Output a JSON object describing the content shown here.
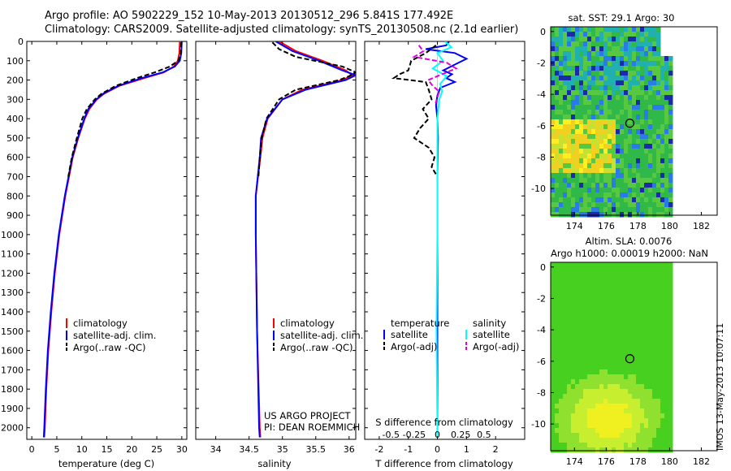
{
  "title_line1": "Argo profile: AO 5902229_152 10-May-2013 20130512_296 5.841S 177.492E",
  "title_line2": "Climatology: CARS2009. Satellite-adjusted climatology: synTS_20130508.nc (2.1d earlier)",
  "colors": {
    "climatology": "#ff0000",
    "satellite": "#0000ff",
    "argo": "#000000",
    "sat_salt": "#00ffff",
    "argo_salt": "#e000e0"
  },
  "chart_data": [
    {
      "type": "line",
      "id": "temperature",
      "xlabel": "temperature (deg C)",
      "ylabel": "",
      "xlim": [
        -1,
        31
      ],
      "ylim": [
        2060,
        0
      ],
      "xticks": [
        "0",
        "5",
        "10",
        "15",
        "20",
        "25",
        "30"
      ],
      "xtick_values": [
        0,
        5,
        10,
        15,
        20,
        25,
        30
      ],
      "yticks": [
        "0",
        "100",
        "200",
        "300",
        "400",
        "500",
        "600",
        "700",
        "800",
        "900",
        "1000",
        "1100",
        "1200",
        "1300",
        "1400",
        "1500",
        "1600",
        "1700",
        "1800",
        "1900",
        "2000"
      ],
      "ytick_values": [
        0,
        100,
        200,
        300,
        400,
        500,
        600,
        700,
        800,
        900,
        1000,
        1100,
        1200,
        1300,
        1400,
        1500,
        1600,
        1700,
        1800,
        1900,
        2000
      ],
      "legend": [
        "climatology",
        "satellite-adj. clim.",
        "Argo(..raw -QC)"
      ],
      "series": [
        {
          "name": "climatology",
          "depth": [
            0,
            60,
            100,
            130,
            160,
            190,
            230,
            270,
            300,
            350,
            400,
            500,
            600,
            800,
            1000,
            1200,
            1400,
            1600,
            1800,
            2000,
            2050
          ],
          "values": [
            29.6,
            29.5,
            29.2,
            28.4,
            26.4,
            22.5,
            17.5,
            14.5,
            13.0,
            11.5,
            10.6,
            9.3,
            8.2,
            6.7,
            5.5,
            4.6,
            3.9,
            3.3,
            2.9,
            2.6,
            2.5
          ]
        },
        {
          "name": "satellite-adj. clim.",
          "depth": [
            0,
            60,
            100,
            130,
            160,
            190,
            230,
            270,
            300,
            350,
            400,
            500,
            600,
            800,
            1000,
            1200,
            1400,
            1600,
            1800,
            2000,
            2050
          ],
          "values": [
            30.0,
            29.9,
            29.6,
            28.6,
            26.2,
            22.0,
            17.3,
            14.3,
            12.9,
            11.3,
            10.5,
            9.2,
            8.1,
            6.6,
            5.4,
            4.5,
            3.8,
            3.2,
            2.8,
            2.5,
            2.4
          ]
        },
        {
          "name": "Argo(..raw -QC)",
          "depth": [
            5,
            60,
            100,
            130,
            160,
            190,
            230,
            270,
            300,
            350,
            400,
            500,
            600,
            700
          ],
          "values": [
            29.9,
            29.8,
            29.3,
            27.6,
            24.6,
            21.0,
            16.8,
            14.0,
            12.6,
            11.0,
            10.1,
            9.0,
            8.0,
            7.3
          ]
        }
      ]
    },
    {
      "type": "line",
      "id": "salinity",
      "xlabel": "salinity",
      "ylabel": "",
      "xlim": [
        33.7,
        36.1
      ],
      "ylim": [
        2060,
        0
      ],
      "xticks": [
        "34",
        "34.5",
        "35",
        "35.5",
        "36"
      ],
      "xtick_values": [
        34,
        34.5,
        35,
        35.5,
        36
      ],
      "legend": [
        "climatology",
        "satellite-adj. clim.",
        "Argo(..raw -QC)"
      ],
      "annotation_line1": "US ARGO PROJECT",
      "annotation_line2": "PI: DEAN ROEMMICH",
      "series": [
        {
          "name": "climatology",
          "depth": [
            0,
            50,
            100,
            150,
            175,
            200,
            250,
            300,
            400,
            500,
            600,
            800,
            1000,
            1500,
            2000,
            2050
          ],
          "values": [
            34.95,
            35.2,
            35.6,
            35.95,
            36.05,
            35.9,
            35.3,
            35.0,
            34.78,
            34.7,
            34.67,
            34.6,
            34.6,
            34.62,
            34.66,
            34.67
          ]
        },
        {
          "name": "satellite-adj. clim.",
          "depth": [
            0,
            50,
            100,
            150,
            175,
            200,
            250,
            300,
            400,
            500,
            600,
            800,
            1000,
            1500,
            2000,
            2050
          ],
          "values": [
            34.9,
            35.15,
            35.55,
            35.9,
            36.1,
            35.95,
            35.35,
            35.0,
            34.77,
            34.68,
            34.66,
            34.6,
            34.6,
            34.62,
            34.65,
            34.66
          ]
        },
        {
          "name": "Argo(..raw -QC)",
          "depth": [
            5,
            40,
            80,
            130,
            160,
            180,
            200,
            250,
            300,
            400,
            500,
            600,
            700
          ],
          "values": [
            34.85,
            34.95,
            35.2,
            35.9,
            36.1,
            36.0,
            35.85,
            35.2,
            34.95,
            34.76,
            34.69,
            34.66,
            34.64
          ]
        }
      ]
    },
    {
      "type": "line",
      "id": "differences",
      "xlabel": "T difference from climatology",
      "x2label": "S difference from climatology",
      "xlim": [
        -2.5,
        3
      ],
      "ylim": [
        2060,
        0
      ],
      "xticks": [
        "-2",
        "-1",
        "0",
        "1",
        "2"
      ],
      "xtick_values": [
        -2,
        -1,
        0,
        1,
        2
      ],
      "x2ticks": [
        "-0.5",
        "-0.25",
        "0",
        "0.25",
        "0.5"
      ],
      "x2tick_values": [
        -0.5,
        -0.25,
        0,
        0.25,
        0.5
      ],
      "legend_temperature_title": "temperature",
      "legend_salinity_title": "salinity",
      "legend": [
        "satellite",
        "Argo(-adj)",
        "satellite",
        "Argo(-adj)"
      ],
      "series": [
        {
          "name": "temperature satellite",
          "axis": "T",
          "depth": [
            0,
            20,
            40,
            60,
            90,
            120,
            150,
            170,
            190,
            210,
            240,
            280,
            330,
            400,
            500,
            700,
            1000,
            1500,
            2000,
            2050
          ],
          "values": [
            0.4,
            0.3,
            -0.4,
            0.6,
            1.0,
            0.6,
            0.2,
            0.5,
            0.3,
            0.6,
            0.1,
            0.0,
            -0.05,
            0.0,
            0.02,
            0.0,
            0.0,
            0.0,
            0.0,
            0.0
          ]
        },
        {
          "name": "temperature Argo(-adj)",
          "axis": "T",
          "depth": [
            20,
            60,
            100,
            150,
            170,
            190,
            210,
            250,
            300,
            350,
            400,
            450,
            500,
            550,
            600,
            650,
            700
          ],
          "values": [
            -0.05,
            -0.4,
            -0.9,
            -1.0,
            -1.3,
            -1.5,
            -0.4,
            -0.3,
            -0.2,
            -0.5,
            -0.3,
            -0.6,
            -0.8,
            -0.3,
            -0.1,
            -0.2,
            0.0
          ]
        },
        {
          "name": "salinity satellite",
          "axis": "S",
          "depth": [
            0,
            30,
            60,
            100,
            140,
            180,
            220,
            260,
            300,
            400,
            600,
            1000,
            1500,
            2000,
            2050
          ],
          "values": [
            0.08,
            0.15,
            0.0,
            0.06,
            -0.05,
            0.1,
            0.03,
            0.05,
            0.02,
            0.0,
            0.0,
            0.0,
            -0.01,
            0.0,
            0.0
          ]
        },
        {
          "name": "salinity Argo(-adj)",
          "axis": "S",
          "depth": [
            20,
            50,
            80,
            110,
            140,
            170,
            200,
            230,
            260,
            290,
            320
          ],
          "values": [
            -0.2,
            -0.15,
            -0.25,
            0.1,
            0.2,
            0.05,
            -0.1,
            -0.05,
            0.02,
            0.0,
            -0.02
          ]
        }
      ]
    },
    {
      "type": "heatmap",
      "id": "sst_map",
      "title": "sat. SST: 29.1  Argo: 30",
      "xlim": [
        172.5,
        183
      ],
      "ylim": [
        -11.7,
        0.3
      ],
      "xticks": [
        "174",
        "176",
        "178",
        "180",
        "182"
      ],
      "xtick_values": [
        174,
        176,
        178,
        180,
        182
      ],
      "yticks": [
        "0",
        "-2",
        "-4",
        "-6",
        "-8",
        "-10"
      ],
      "ytick_values": [
        0,
        -2,
        -4,
        -6,
        -8,
        -10
      ],
      "profile_location": [
        177.492,
        -5.841
      ]
    },
    {
      "type": "heatmap",
      "id": "sla_map",
      "title_line1": "Altim. SLA: 0.0076",
      "title_line2": "Argo h1000: 0.00019 h2000: NaN",
      "xlim": [
        172.5,
        183
      ],
      "ylim": [
        -11.7,
        0.3
      ],
      "xticks": [
        "174",
        "176",
        "178",
        "180",
        "182"
      ],
      "xtick_values": [
        174,
        176,
        178,
        180,
        182
      ],
      "yticks": [
        "0",
        "-2",
        "-4",
        "-6",
        "-8",
        "-10"
      ],
      "ytick_values": [
        0,
        -2,
        -4,
        -6,
        -8,
        -10
      ],
      "profile_location": [
        177.492,
        -5.841
      ]
    }
  ],
  "stamp": "IMOS 13-May-2013 10:07:11"
}
